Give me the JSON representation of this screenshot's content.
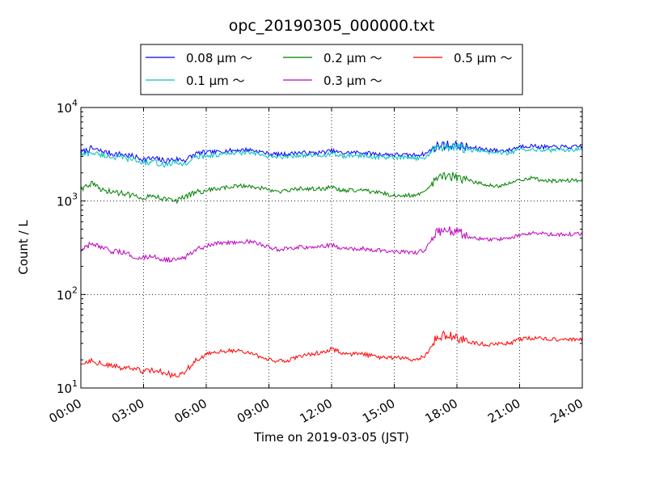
{
  "chart_data": {
    "type": "line",
    "title": "opc_20190305_000000.txt",
    "xlabel": "Time on 2019-03-05 (JST)",
    "ylabel": "Count / L",
    "yscale": "log",
    "ylim": [
      10,
      10000
    ],
    "xlim": [
      "00:00",
      "24:00"
    ],
    "x_ticks": [
      "00:00",
      "03:00",
      "06:00",
      "09:00",
      "12:00",
      "15:00",
      "18:00",
      "21:00",
      "24:00"
    ],
    "y_ticks": [
      {
        "base": "10",
        "exp": "1"
      },
      {
        "base": "10",
        "exp": "2"
      },
      {
        "base": "10",
        "exp": "3"
      },
      {
        "base": "10",
        "exp": "4"
      }
    ],
    "grid": true,
    "legend_position": "top-center",
    "x_hours": [
      0,
      0.5,
      1,
      1.5,
      2,
      2.5,
      3,
      3.5,
      4,
      4.5,
      5,
      5.5,
      6,
      6.5,
      7,
      7.5,
      8,
      8.5,
      9,
      9.5,
      10,
      10.5,
      11,
      11.5,
      12,
      12.5,
      13,
      13.5,
      14,
      14.5,
      15,
      15.5,
      16,
      16.5,
      17,
      17.5,
      18,
      18.5,
      19,
      19.5,
      20,
      20.5,
      21,
      21.5,
      22,
      22.5,
      23,
      23.5,
      24
    ],
    "series": [
      {
        "name": "0.08 μm ～",
        "color": "#0000ff",
        "values": [
          3300,
          3650,
          3400,
          3200,
          3150,
          3000,
          2800,
          2850,
          2700,
          2800,
          2750,
          3200,
          3300,
          3350,
          3450,
          3500,
          3550,
          3400,
          3200,
          3150,
          3200,
          3300,
          3250,
          3300,
          3450,
          3250,
          3300,
          3300,
          3200,
          3150,
          3150,
          3100,
          3100,
          3200,
          3850,
          4000,
          3950,
          3750,
          3650,
          3550,
          3450,
          3500,
          3850,
          3900,
          3800,
          3750,
          3800,
          3750,
          3850
        ]
      },
      {
        "name": "0.1 μm ～",
        "color": "#00bfbf",
        "values": [
          3100,
          3300,
          3100,
          2950,
          2900,
          2750,
          2550,
          2600,
          2450,
          2550,
          2500,
          2950,
          3050,
          3100,
          3200,
          3250,
          3300,
          3150,
          2950,
          2950,
          3000,
          3100,
          3050,
          3050,
          3200,
          3000,
          3050,
          3050,
          2950,
          2950,
          2900,
          2900,
          2850,
          2950,
          3750,
          3800,
          3750,
          3550,
          3450,
          3350,
          3300,
          3250,
          3550,
          3600,
          3550,
          3500,
          3550,
          3500,
          3600
        ]
      },
      {
        "name": "0.2 μm ～",
        "color": "#008000",
        "values": [
          1350,
          1550,
          1300,
          1250,
          1200,
          1150,
          1100,
          1150,
          1050,
          1000,
          1100,
          1250,
          1300,
          1350,
          1400,
          1450,
          1450,
          1400,
          1300,
          1250,
          1300,
          1350,
          1350,
          1350,
          1400,
          1300,
          1300,
          1300,
          1250,
          1200,
          1150,
          1150,
          1150,
          1250,
          1750,
          1850,
          1800,
          1650,
          1550,
          1500,
          1450,
          1550,
          1700,
          1750,
          1700,
          1650,
          1650,
          1650,
          1700
        ]
      },
      {
        "name": "0.3 μm ～",
        "color": "#bf00bf",
        "values": [
          290,
          350,
          310,
          290,
          280,
          260,
          245,
          250,
          240,
          230,
          250,
          310,
          330,
          350,
          360,
          365,
          370,
          350,
          320,
          300,
          310,
          320,
          320,
          325,
          340,
          310,
          305,
          310,
          300,
          295,
          290,
          285,
          280,
          300,
          460,
          480,
          470,
          420,
          400,
          390,
          390,
          400,
          430,
          450,
          450,
          440,
          440,
          440,
          450
        ]
      },
      {
        "name": "0.5 μm ～",
        "color": "#ff0000",
        "values": [
          18,
          20,
          18,
          17,
          16.5,
          16,
          15,
          15.5,
          14.5,
          13.5,
          15,
          20,
          23,
          24,
          25,
          25,
          24,
          22,
          20,
          19.5,
          20,
          22,
          23,
          24,
          26,
          24,
          23,
          23,
          22,
          21,
          21,
          21,
          20,
          22,
          35,
          37,
          35,
          31,
          30,
          29,
          29.5,
          30,
          33,
          34,
          34,
          33,
          33,
          33,
          33.5
        ]
      }
    ]
  }
}
